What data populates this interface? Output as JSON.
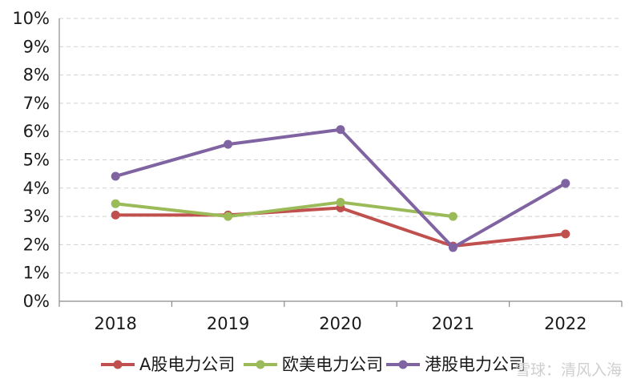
{
  "chart_data": {
    "type": "line",
    "title": "",
    "xlabel": "",
    "ylabel": "",
    "categories": [
      "2018",
      "2019",
      "2020",
      "2021",
      "2022"
    ],
    "ylim": [
      0,
      10
    ],
    "y_ticks": [
      "0%",
      "1%",
      "2%",
      "3%",
      "4%",
      "5%",
      "6%",
      "7%",
      "8%",
      "9%",
      "10%"
    ],
    "y_unit": "%",
    "grid": "horizontal-dashed",
    "legend_position": "bottom",
    "series": [
      {
        "name": "A股电力公司",
        "color": "#c0504d",
        "values": [
          3.05,
          3.05,
          3.3,
          1.95,
          2.38
        ]
      },
      {
        "name": "欧美电力公司",
        "color": "#9bbb59",
        "values": [
          3.45,
          3.0,
          3.5,
          3.0,
          null
        ]
      },
      {
        "name": "港股电力公司",
        "color": "#8064a2",
        "values": [
          4.42,
          5.55,
          6.07,
          1.9,
          4.17
        ]
      }
    ]
  },
  "watermark": {
    "text": "雪球：清风入海"
  }
}
